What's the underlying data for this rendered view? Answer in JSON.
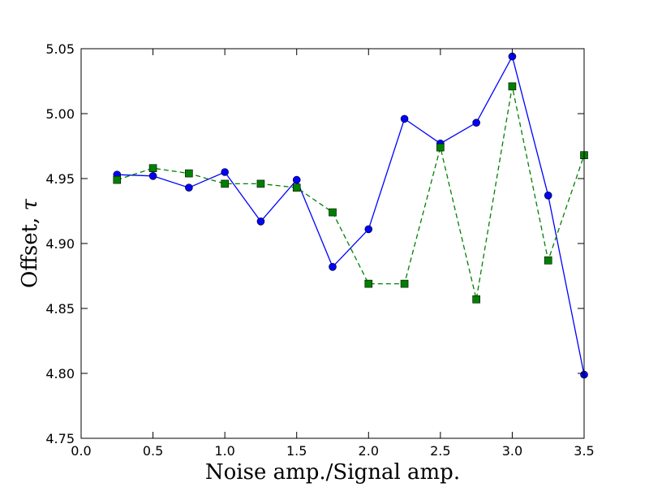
{
  "chart_data": {
    "type": "line",
    "title": "",
    "xlabel": "Noise amp./Signal amp.",
    "ylabel_text": "Offset, ",
    "ylabel_symbol": "τ",
    "xlim": [
      0.0,
      3.5
    ],
    "ylim": [
      4.75,
      5.05
    ],
    "xticks": [
      "0.0",
      "0.5",
      "1.0",
      "1.5",
      "2.0",
      "2.5",
      "3.0",
      "3.5"
    ],
    "yticks": [
      "4.75",
      "4.80",
      "4.85",
      "4.90",
      "4.95",
      "5.00",
      "5.05"
    ],
    "grid": false,
    "legend": "none",
    "series": [
      {
        "style": "solid",
        "marker": "circle",
        "color": "#0000ff",
        "x": [
          0.25,
          0.5,
          0.75,
          1.0,
          1.25,
          1.5,
          1.75,
          2.0,
          2.25,
          2.5,
          2.75,
          3.0,
          3.25,
          3.5
        ],
        "y": [
          4.953,
          4.952,
          4.943,
          4.955,
          4.917,
          4.949,
          4.882,
          4.911,
          4.996,
          4.977,
          4.993,
          5.044,
          4.937,
          4.799
        ]
      },
      {
        "style": "dashed",
        "marker": "square",
        "color": "#008000",
        "x": [
          0.25,
          0.5,
          0.75,
          1.0,
          1.25,
          1.5,
          1.75,
          2.0,
          2.25,
          2.5,
          2.75,
          3.0,
          3.25,
          3.5
        ],
        "y": [
          4.949,
          4.958,
          4.954,
          4.946,
          4.946,
          4.943,
          4.924,
          4.869,
          4.869,
          4.974,
          4.857,
          5.021,
          4.887,
          4.968
        ]
      }
    ]
  }
}
